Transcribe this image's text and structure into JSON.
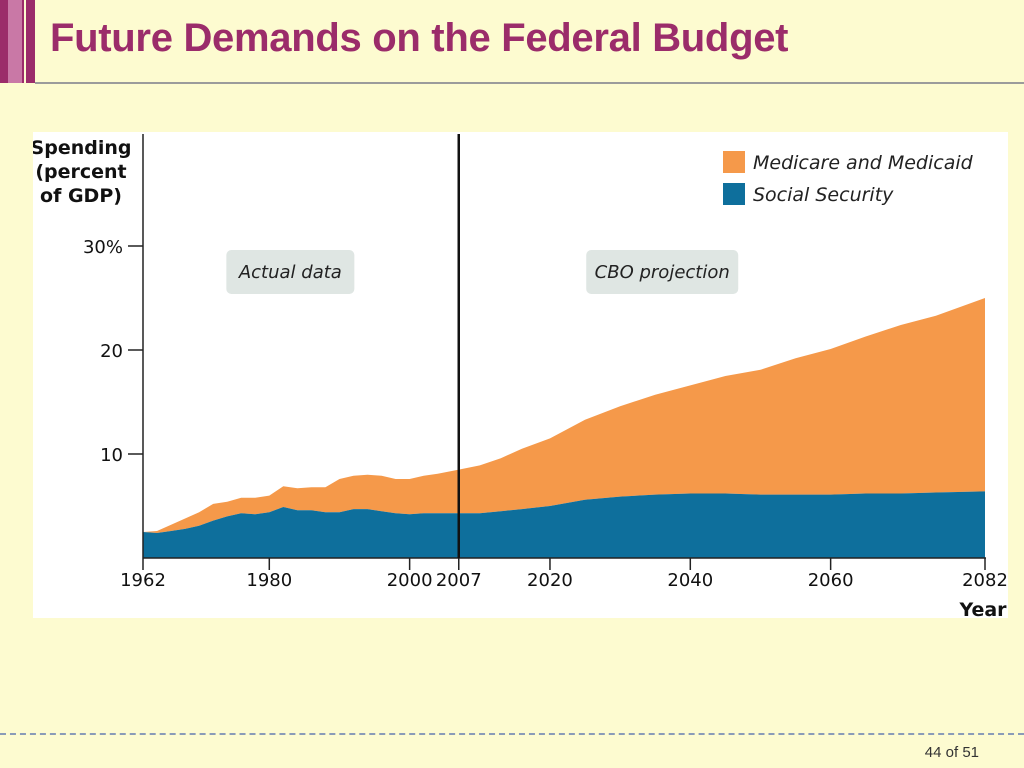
{
  "slide": {
    "title": "Future Demands on the Federal Budget",
    "page_current": "44",
    "page_of": "of",
    "page_total": "51"
  },
  "colors": {
    "accent": "#9b2c6a",
    "medicare": "#f5994a",
    "social_security": "#0e6f9c",
    "label_box": "#dfe6e3"
  },
  "chart_data": {
    "type": "area",
    "stacked": true,
    "ylabel_lines": [
      "Spending",
      "(percent",
      "of GDP)"
    ],
    "xlabel": "Year",
    "ylim": [
      0,
      30
    ],
    "yticks": [
      10,
      20,
      30
    ],
    "ytick_labels": [
      "10",
      "20",
      "30%"
    ],
    "xlim": [
      1962,
      2082
    ],
    "xticks": [
      1962,
      1980,
      2000,
      2007,
      2020,
      2040,
      2060,
      2082
    ],
    "xtick_labels": [
      "1962",
      "1980",
      "2000",
      "2007",
      "2020",
      "2040",
      "2060",
      "2082"
    ],
    "divider_x": 2007,
    "annotations": [
      {
        "text": "Actual data",
        "x_center": 1983,
        "y": 27.5
      },
      {
        "text": "CBO projection",
        "x_center": 2036,
        "y": 27.5
      }
    ],
    "legend": {
      "position": "top-right",
      "order": [
        "Medicare and Medicaid",
        "Social Security"
      ]
    },
    "x": [
      1962,
      1964,
      1966,
      1968,
      1970,
      1972,
      1974,
      1976,
      1978,
      1980,
      1982,
      1984,
      1986,
      1988,
      1990,
      1992,
      1994,
      1996,
      1998,
      2000,
      2002,
      2004,
      2007,
      2010,
      2013,
      2016,
      2020,
      2025,
      2030,
      2035,
      2040,
      2045,
      2050,
      2055,
      2060,
      2065,
      2070,
      2075,
      2082
    ],
    "series": [
      {
        "name": "Social Security",
        "values": [
          2.5,
          2.4,
          2.6,
          2.8,
          3.1,
          3.6,
          4.0,
          4.3,
          4.2,
          4.4,
          4.9,
          4.6,
          4.6,
          4.4,
          4.4,
          4.7,
          4.7,
          4.5,
          4.3,
          4.2,
          4.3,
          4.3,
          4.3,
          4.3,
          4.5,
          4.7,
          5.0,
          5.6,
          5.9,
          6.1,
          6.2,
          6.2,
          6.1,
          6.1,
          6.1,
          6.2,
          6.2,
          6.3,
          6.4
        ]
      },
      {
        "name": "Medicare and Medicaid",
        "values": [
          0.0,
          0.2,
          0.6,
          1.0,
          1.3,
          1.6,
          1.4,
          1.5,
          1.6,
          1.6,
          2.0,
          2.1,
          2.2,
          2.4,
          3.2,
          3.2,
          3.3,
          3.4,
          3.3,
          3.4,
          3.6,
          3.8,
          4.2,
          4.6,
          5.1,
          5.8,
          6.5,
          7.7,
          8.7,
          9.6,
          10.4,
          11.3,
          12.0,
          13.1,
          14.0,
          15.1,
          16.2,
          17.0,
          18.6
        ]
      }
    ]
  }
}
